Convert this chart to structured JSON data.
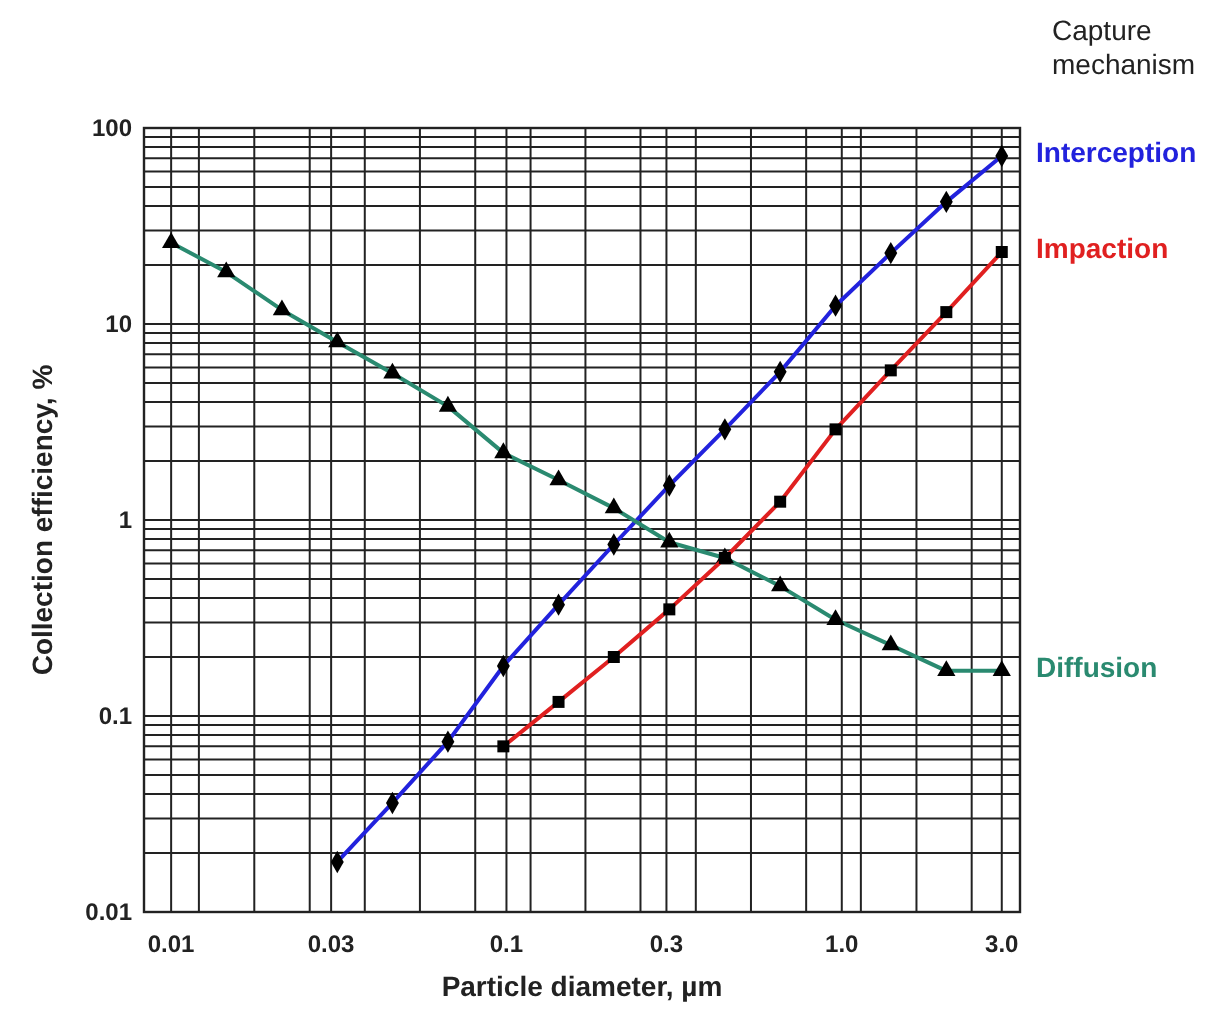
{
  "chart_data": {
    "type": "line",
    "xlabel": "Particle diameter, µm",
    "ylabel": "Collection efficiency, %",
    "legend_title": "Capture mechanism",
    "log": "xy",
    "grid": true,
    "legend": "right",
    "xlim": [
      0.0083,
      3.4
    ],
    "ylim": [
      0.01,
      100
    ],
    "xticks": [
      0.01,
      0.03,
      0.1,
      0.3,
      {
        "value": 1,
        "label": "1.0"
      },
      {
        "value": 3,
        "label": "3.0"
      },
      {
        "value": 0.0121,
        "label": null
      },
      {
        "value": 0.0177,
        "label": null
      },
      {
        "value": 0.0259,
        "label": null
      },
      {
        "value": 0.0378,
        "label": null
      },
      {
        "value": 0.0552,
        "label": null
      },
      {
        "value": 0.0807,
        "label": null
      },
      {
        "value": 0.118,
        "label": null
      },
      {
        "value": 0.172,
        "label": null
      },
      {
        "value": 0.251,
        "label": null
      },
      {
        "value": 0.367,
        "label": null
      },
      {
        "value": 0.536,
        "label": null
      },
      {
        "value": 0.783,
        "label": null
      },
      {
        "value": 1.14,
        "label": null
      },
      {
        "value": 1.67,
        "label": null
      },
      {
        "value": 2.44,
        "label": null
      }
    ],
    "yticks": [
      0.01,
      0.1,
      1,
      10,
      100,
      {
        "value": 0.02,
        "label": null
      },
      {
        "value": 0.03,
        "label": null
      },
      {
        "value": 0.04,
        "label": null
      },
      {
        "value": 0.05,
        "label": null
      },
      {
        "value": 0.06,
        "label": null
      },
      {
        "value": 0.07,
        "label": null
      },
      {
        "value": 0.08,
        "label": null
      },
      {
        "value": 0.09,
        "label": null
      },
      {
        "value": 0.2,
        "label": null
      },
      {
        "value": 0.3,
        "label": null
      },
      {
        "value": 0.4,
        "label": null
      },
      {
        "value": 0.5,
        "label": null
      },
      {
        "value": 0.6,
        "label": null
      },
      {
        "value": 0.7,
        "label": null
      },
      {
        "value": 0.8,
        "label": null
      },
      {
        "value": 0.9,
        "label": null
      },
      {
        "value": 2,
        "label": null
      },
      {
        "value": 3,
        "label": null
      },
      {
        "value": 4,
        "label": null
      },
      {
        "value": 5,
        "label": null
      },
      {
        "value": 6,
        "label": null
      },
      {
        "value": 7,
        "label": null
      },
      {
        "value": 8,
        "label": null
      },
      {
        "value": 9,
        "label": null
      },
      {
        "value": 20,
        "label": null
      },
      {
        "value": 30,
        "label": null
      },
      {
        "value": 40,
        "label": null
      },
      {
        "value": 50,
        "label": null
      },
      {
        "value": 60,
        "label": null
      },
      {
        "value": 70,
        "label": null
      },
      {
        "value": 80,
        "label": null
      },
      {
        "value": 90,
        "label": null
      }
    ],
    "series": [
      {
        "name": "Interception",
        "color": "#2222dd",
        "marker": "diamond",
        "x": [
          0.0313,
          0.0457,
          0.0669,
          0.0979,
          0.143,
          0.209,
          0.306,
          0.448,
          0.655,
          0.958,
          1.4,
          2.05,
          3.0
        ],
        "values": [
          0.018,
          0.036,
          0.074,
          0.18,
          0.37,
          0.75,
          1.5,
          2.9,
          5.7,
          12.4,
          23,
          42,
          72
        ]
      },
      {
        "name": "Diffusion",
        "color": "#2a8a70",
        "marker": "triangle",
        "x": [
          0.01,
          0.0146,
          0.0214,
          0.0313,
          0.0457,
          0.0669,
          0.0979,
          0.143,
          0.209,
          0.306,
          0.448,
          0.655,
          0.958,
          1.4,
          2.05,
          3.0
        ],
        "values": [
          26,
          18.4,
          11.8,
          8.1,
          5.6,
          3.8,
          2.2,
          1.6,
          1.15,
          0.77,
          0.64,
          0.46,
          0.31,
          0.23,
          0.17,
          0.17
        ]
      },
      {
        "name": "Impaction",
        "color": "#e02020",
        "marker": "square",
        "x": [
          0.0979,
          0.143,
          0.209,
          0.306,
          0.448,
          0.655,
          0.958,
          1.4,
          2.05,
          3.0
        ],
        "values": [
          0.07,
          0.118,
          0.2,
          0.35,
          0.64,
          1.24,
          2.9,
          5.8,
          11.5,
          23.3
        ]
      }
    ]
  }
}
